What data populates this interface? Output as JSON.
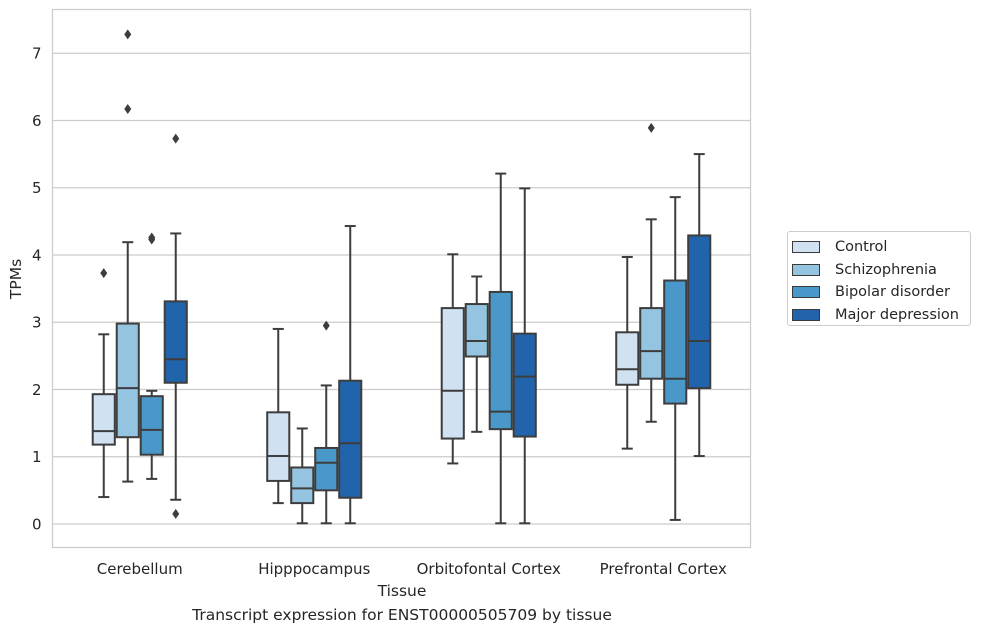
{
  "chart_data": {
    "type": "boxplot",
    "xlabel": "Tissue",
    "ylabel": "TPMs",
    "caption": "Transcript expression for ENST00000505709 by tissue",
    "ylim": [
      -0.35,
      7.65
    ],
    "yticks": [
      0,
      1,
      2,
      3,
      4,
      5,
      6,
      7
    ],
    "grid": true,
    "legend_position": "right",
    "categories": [
      "Cerebellum",
      "Hipppocampus",
      "Orbitofontal Cortex",
      "Prefrontal Cortex"
    ],
    "series": [
      {
        "name": "Control",
        "color": "#d0e1f2",
        "boxes": [
          {
            "whislo": 0.4,
            "q1": 1.18,
            "med": 1.38,
            "q3": 1.93,
            "whishi": 2.82,
            "fliers": [
              3.73
            ]
          },
          {
            "whislo": 0.31,
            "q1": 0.64,
            "med": 1.01,
            "q3": 1.66,
            "whishi": 2.9,
            "fliers": []
          },
          {
            "whislo": 0.9,
            "q1": 1.27,
            "med": 1.98,
            "q3": 3.21,
            "whishi": 4.01,
            "fliers": []
          },
          {
            "whislo": 1.12,
            "q1": 2.07,
            "med": 2.3,
            "q3": 2.85,
            "whishi": 3.97,
            "fliers": []
          }
        ]
      },
      {
        "name": "Schizophrenia",
        "color": "#94c4df",
        "boxes": [
          {
            "whislo": 0.63,
            "q1": 1.29,
            "med": 2.02,
            "q3": 2.98,
            "whishi": 4.19,
            "fliers": [
              6.17,
              7.28
            ]
          },
          {
            "whislo": 0.01,
            "q1": 0.31,
            "med": 0.53,
            "q3": 0.84,
            "whishi": 1.42,
            "fliers": []
          },
          {
            "whislo": 1.37,
            "q1": 2.49,
            "med": 2.72,
            "q3": 3.27,
            "whishi": 3.68,
            "fliers": []
          },
          {
            "whislo": 1.52,
            "q1": 2.16,
            "med": 2.57,
            "q3": 3.21,
            "whishi": 4.53,
            "fliers": [
              5.89
            ]
          }
        ]
      },
      {
        "name": "Bipolar disorder",
        "color": "#4a98c9",
        "boxes": [
          {
            "whislo": 0.67,
            "q1": 1.03,
            "med": 1.4,
            "q3": 1.9,
            "whishi": 1.98,
            "fliers": [
              4.23,
              4.26
            ]
          },
          {
            "whislo": 0.01,
            "q1": 0.5,
            "med": 0.91,
            "q3": 1.13,
            "whishi": 2.06,
            "fliers": [
              2.95
            ]
          },
          {
            "whislo": 0.01,
            "q1": 1.41,
            "med": 1.67,
            "q3": 3.45,
            "whishi": 5.21,
            "fliers": []
          },
          {
            "whislo": 0.06,
            "q1": 1.79,
            "med": 2.16,
            "q3": 3.62,
            "whishi": 4.86,
            "fliers": []
          }
        ]
      },
      {
        "name": "Major depression",
        "color": "#2264ab",
        "boxes": [
          {
            "whislo": 0.36,
            "q1": 2.1,
            "med": 2.45,
            "q3": 3.31,
            "whishi": 4.32,
            "fliers": [
              5.73,
              0.15
            ]
          },
          {
            "whislo": 0.01,
            "q1": 0.39,
            "med": 1.2,
            "q3": 2.13,
            "whishi": 4.43,
            "fliers": []
          },
          {
            "whislo": 0.01,
            "q1": 1.3,
            "med": 2.19,
            "q3": 2.83,
            "whishi": 4.99,
            "fliers": []
          },
          {
            "whislo": 1.01,
            "q1": 2.02,
            "med": 2.72,
            "q3": 4.29,
            "whishi": 5.5,
            "fliers": []
          }
        ]
      }
    ]
  }
}
